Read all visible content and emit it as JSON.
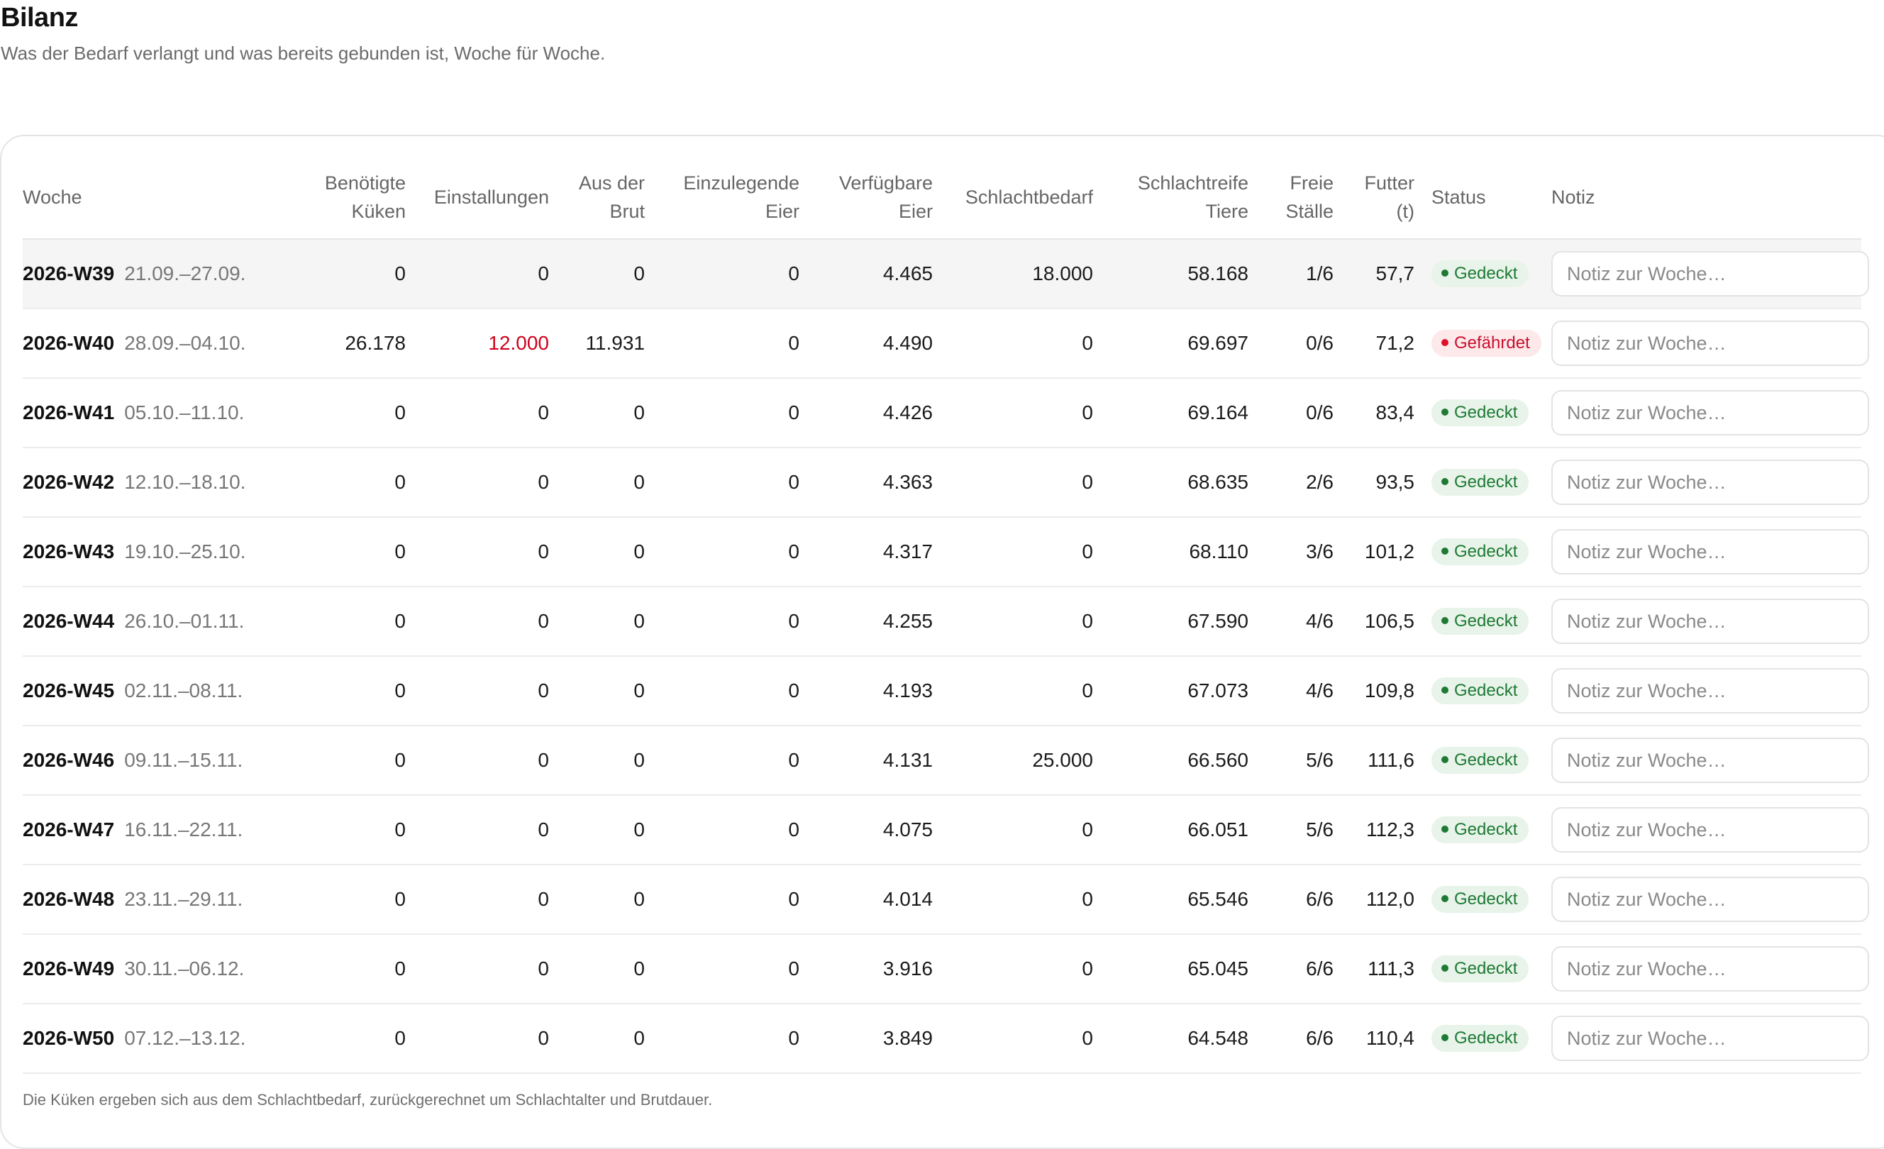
{
  "header": {
    "title": "Bilanz",
    "subtitle": "Was der Bedarf verlangt und was bereits gebunden ist, Woche für Woche."
  },
  "table": {
    "columns": {
      "woche": "Woche",
      "benoetigte_kueken": [
        "Benötigte",
        "Küken"
      ],
      "einstallungen": "Einstallungen",
      "aus_der_brut": [
        "Aus der",
        "Brut"
      ],
      "einzulegende_eier": [
        "Einzulegende",
        "Eier"
      ],
      "verfuegbare_eier": [
        "Verfügbare",
        "Eier"
      ],
      "schlachtbedarf": "Schlachtbedarf",
      "schlachtreife_tiere": [
        "Schlachtreife",
        "Tiere"
      ],
      "freie_staelle": [
        "Freie",
        "Ställe"
      ],
      "futter": [
        "Futter",
        "(t)"
      ],
      "status": "Status",
      "notiz": "Notiz"
    },
    "note_placeholder": "Notiz zur Woche…",
    "rows": [
      {
        "week": "2026-W39",
        "dates": "21.09.–27.09.",
        "kueken": "0",
        "einstallungen": "0",
        "brut": "0",
        "einzulegen": "0",
        "verfuegbar": "4.465",
        "schlachtbedarf": "18.000",
        "schlachtreif": "58.168",
        "staelle": "1/6",
        "futter": "57,7",
        "status": "Gedeckt",
        "status_type": "ok",
        "highlight": true
      },
      {
        "week": "2026-W40",
        "dates": "28.09.–04.10.",
        "kueken": "26.178",
        "einstallungen": "12.000",
        "einstallungen_warn": true,
        "brut": "11.931",
        "einzulegen": "0",
        "verfuegbar": "4.490",
        "schlachtbedarf": "0",
        "schlachtreif": "69.697",
        "staelle": "0/6",
        "futter": "71,2",
        "status": "Gefährdet",
        "status_type": "risk"
      },
      {
        "week": "2026-W41",
        "dates": "05.10.–11.10.",
        "kueken": "0",
        "einstallungen": "0",
        "brut": "0",
        "einzulegen": "0",
        "verfuegbar": "4.426",
        "schlachtbedarf": "0",
        "schlachtreif": "69.164",
        "staelle": "0/6",
        "futter": "83,4",
        "status": "Gedeckt",
        "status_type": "ok"
      },
      {
        "week": "2026-W42",
        "dates": "12.10.–18.10.",
        "kueken": "0",
        "einstallungen": "0",
        "brut": "0",
        "einzulegen": "0",
        "verfuegbar": "4.363",
        "schlachtbedarf": "0",
        "schlachtreif": "68.635",
        "staelle": "2/6",
        "futter": "93,5",
        "status": "Gedeckt",
        "status_type": "ok"
      },
      {
        "week": "2026-W43",
        "dates": "19.10.–25.10.",
        "kueken": "0",
        "einstallungen": "0",
        "brut": "0",
        "einzulegen": "0",
        "verfuegbar": "4.317",
        "schlachtbedarf": "0",
        "schlachtreif": "68.110",
        "staelle": "3/6",
        "futter": "101,2",
        "status": "Gedeckt",
        "status_type": "ok"
      },
      {
        "week": "2026-W44",
        "dates": "26.10.–01.11.",
        "kueken": "0",
        "einstallungen": "0",
        "brut": "0",
        "einzulegen": "0",
        "verfuegbar": "4.255",
        "schlachtbedarf": "0",
        "schlachtreif": "67.590",
        "staelle": "4/6",
        "futter": "106,5",
        "status": "Gedeckt",
        "status_type": "ok"
      },
      {
        "week": "2026-W45",
        "dates": "02.11.–08.11.",
        "kueken": "0",
        "einstallungen": "0",
        "brut": "0",
        "einzulegen": "0",
        "verfuegbar": "4.193",
        "schlachtbedarf": "0",
        "schlachtreif": "67.073",
        "staelle": "4/6",
        "futter": "109,8",
        "status": "Gedeckt",
        "status_type": "ok"
      },
      {
        "week": "2026-W46",
        "dates": "09.11.–15.11.",
        "kueken": "0",
        "einstallungen": "0",
        "brut": "0",
        "einzulegen": "0",
        "verfuegbar": "4.131",
        "schlachtbedarf": "25.000",
        "schlachtreif": "66.560",
        "staelle": "5/6",
        "futter": "111,6",
        "status": "Gedeckt",
        "status_type": "ok"
      },
      {
        "week": "2026-W47",
        "dates": "16.11.–22.11.",
        "kueken": "0",
        "einstallungen": "0",
        "brut": "0",
        "einzulegen": "0",
        "verfuegbar": "4.075",
        "schlachtbedarf": "0",
        "schlachtreif": "66.051",
        "staelle": "5/6",
        "futter": "112,3",
        "status": "Gedeckt",
        "status_type": "ok"
      },
      {
        "week": "2026-W48",
        "dates": "23.11.–29.11.",
        "kueken": "0",
        "einstallungen": "0",
        "brut": "0",
        "einzulegen": "0",
        "verfuegbar": "4.014",
        "schlachtbedarf": "0",
        "schlachtreif": "65.546",
        "staelle": "6/6",
        "futter": "112,0",
        "status": "Gedeckt",
        "status_type": "ok"
      },
      {
        "week": "2026-W49",
        "dates": "30.11.–06.12.",
        "kueken": "0",
        "einstallungen": "0",
        "brut": "0",
        "einzulegen": "0",
        "verfuegbar": "3.916",
        "schlachtbedarf": "0",
        "schlachtreif": "65.045",
        "staelle": "6/6",
        "futter": "111,3",
        "status": "Gedeckt",
        "status_type": "ok"
      },
      {
        "week": "2026-W50",
        "dates": "07.12.–13.12.",
        "kueken": "0",
        "einstallungen": "0",
        "brut": "0",
        "einzulegen": "0",
        "verfuegbar": "3.849",
        "schlachtbedarf": "0",
        "schlachtreif": "64.548",
        "staelle": "6/6",
        "futter": "110,4",
        "status": "Gedeckt",
        "status_type": "ok"
      }
    ]
  },
  "footnote": "Die Küken ergeben sich aus dem Schlachtbedarf, zurückgerechnet um Schlachtalter und Brutdauer.",
  "colors": {
    "ok": "#1d7a34",
    "ok_bg": "#e8f3e9",
    "risk": "#c8102e",
    "risk_bg": "#fde8ea",
    "warn_text": "#d0021b"
  }
}
